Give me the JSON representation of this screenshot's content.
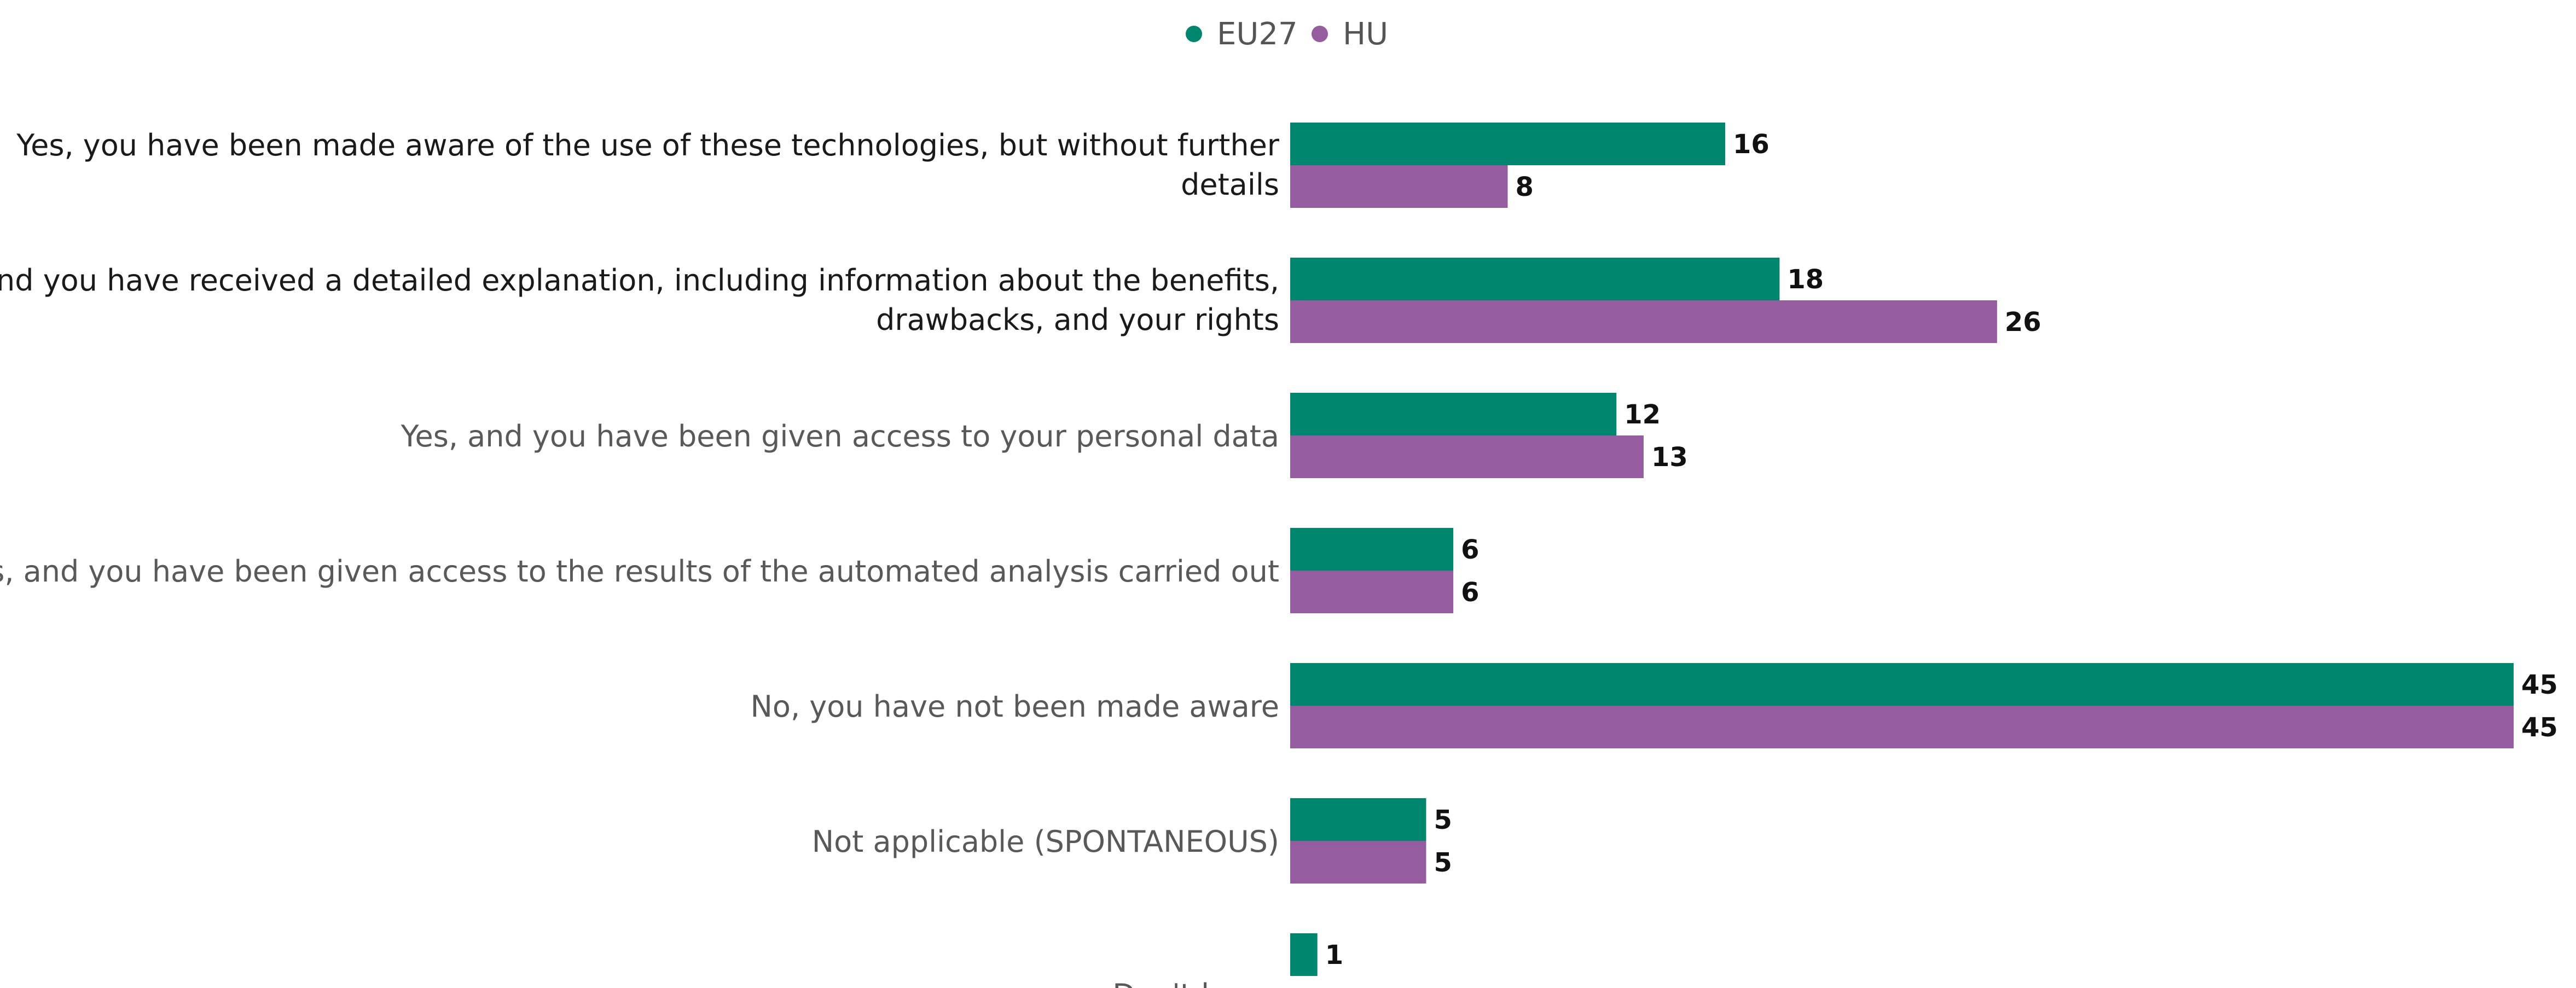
{
  "chart_data": {
    "type": "bar",
    "orientation": "horizontal",
    "categories": [
      [
        "Yes, you have been made aware of the use of these technologies, but without further",
        "details"
      ],
      [
        "Yes, and you have received a detailed explanation, including information about the benefits,",
        "drawbacks, and your rights"
      ],
      [
        "Yes, and you have been given access to your personal data"
      ],
      [
        "Yes, and you have been given access to the results of the automated analysis carried out"
      ],
      [
        "No, you have not been made aware"
      ],
      [
        "Not applicable (SPONTANEOUS)"
      ],
      [
        "Don't know"
      ]
    ],
    "category_label_colors": [
      "#1a1a1a",
      "#1a1a1a",
      "#595959",
      "#595959",
      "#595959",
      "#595959",
      "#595959"
    ],
    "series": [
      {
        "name": "EU27",
        "color": "#00856F",
        "values": [
          16,
          18,
          12,
          6,
          45,
          5,
          1
        ]
      },
      {
        "name": "HU",
        "color": "#955CA0",
        "values": [
          8,
          26,
          13,
          6,
          45,
          5,
          null
        ]
      }
    ],
    "xlim": [
      0,
      45
    ],
    "legend_position": "top-center",
    "grid": false,
    "data_labels": true
  }
}
